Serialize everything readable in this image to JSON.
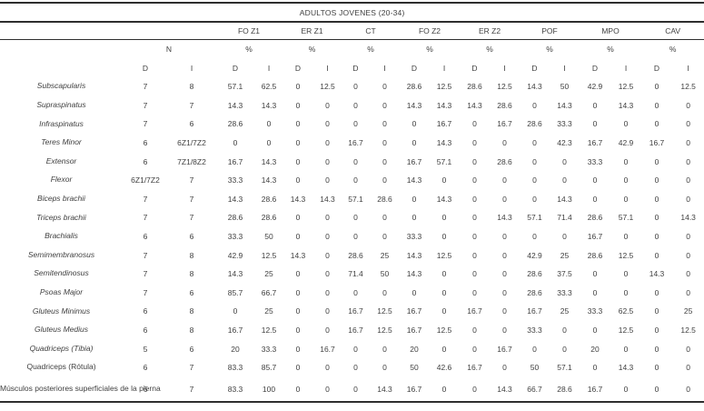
{
  "table": {
    "title": "ADULTOS JOVENES (20-34)",
    "n_label": "N",
    "percent_label": "%",
    "d_label": "D",
    "i_label": "I",
    "groups": [
      {
        "label": "FO Z1"
      },
      {
        "label": "ER Z1"
      },
      {
        "label": "CT"
      },
      {
        "label": "FO Z2"
      },
      {
        "label": "ER Z2"
      },
      {
        "label": "POF"
      },
      {
        "label": "MPO"
      },
      {
        "label": "CAV"
      }
    ],
    "rows": [
      {
        "muscle": "Subscapularis",
        "italic": true,
        "values": [
          "7",
          "8",
          "57.1",
          "62.5",
          "0",
          "12.5",
          "0",
          "0",
          "28.6",
          "12.5",
          "28.6",
          "12.5",
          "14.3",
          "50",
          "42.9",
          "12.5",
          "0",
          "12.5"
        ]
      },
      {
        "muscle": "Supraspinatus",
        "italic": true,
        "values": [
          "7",
          "7",
          "14.3",
          "14.3",
          "0",
          "0",
          "0",
          "0",
          "14.3",
          "14.3",
          "14.3",
          "28.6",
          "0",
          "14.3",
          "0",
          "14.3",
          "0",
          "0"
        ]
      },
      {
        "muscle": "Infraspinatus",
        "italic": true,
        "values": [
          "7",
          "6",
          "28.6",
          "0",
          "0",
          "0",
          "0",
          "0",
          "0",
          "16.7",
          "0",
          "16.7",
          "28.6",
          "33.3",
          "0",
          "0",
          "0",
          "0"
        ]
      },
      {
        "muscle": "Teres Minor",
        "italic": true,
        "values": [
          "6",
          "6Z1/7Z2",
          "0",
          "0",
          "0",
          "0",
          "16.7",
          "0",
          "0",
          "14.3",
          "0",
          "0",
          "0",
          "42.3",
          "16.7",
          "42.9",
          "16.7",
          "0"
        ]
      },
      {
        "muscle": "Extensor",
        "italic": true,
        "values": [
          "6",
          "7Z1/8Z2",
          "16.7",
          "14.3",
          "0",
          "0",
          "0",
          "0",
          "16.7",
          "57.1",
          "0",
          "28.6",
          "0",
          "0",
          "33.3",
          "0",
          "0",
          "0"
        ]
      },
      {
        "muscle": "Flexor",
        "italic": true,
        "values": [
          "6Z1/7Z2",
          "7",
          "33.3",
          "14.3",
          "0",
          "0",
          "0",
          "0",
          "14.3",
          "0",
          "0",
          "0",
          "0",
          "0",
          "0",
          "0",
          "0",
          "0"
        ]
      },
      {
        "muscle": "Biceps brachii",
        "italic": true,
        "values": [
          "7",
          "7",
          "14.3",
          "28.6",
          "14.3",
          "14.3",
          "57.1",
          "28.6",
          "0",
          "14.3",
          "0",
          "0",
          "0",
          "14.3",
          "0",
          "0",
          "0",
          "0"
        ]
      },
      {
        "muscle": "Triceps brachii",
        "italic": true,
        "values": [
          "7",
          "7",
          "28.6",
          "28.6",
          "0",
          "0",
          "0",
          "0",
          "0",
          "0",
          "0",
          "14.3",
          "57.1",
          "71.4",
          "28.6",
          "57.1",
          "0",
          "14.3"
        ]
      },
      {
        "muscle": "Brachialis",
        "italic": true,
        "values": [
          "6",
          "6",
          "33.3",
          "50",
          "0",
          "0",
          "0",
          "0",
          "33.3",
          "0",
          "0",
          "0",
          "0",
          "0",
          "16.7",
          "0",
          "0",
          "0"
        ]
      },
      {
        "muscle": "Semimembranosus",
        "italic": true,
        "values": [
          "7",
          "8",
          "42.9",
          "12.5",
          "14.3",
          "0",
          "28.6",
          "25",
          "14.3",
          "12.5",
          "0",
          "0",
          "42.9",
          "25",
          "28.6",
          "12.5",
          "0",
          "0"
        ]
      },
      {
        "muscle": "Semitendinosus",
        "italic": true,
        "values": [
          "7",
          "8",
          "14.3",
          "25",
          "0",
          "0",
          "71.4",
          "50",
          "14.3",
          "0",
          "0",
          "0",
          "28.6",
          "37.5",
          "0",
          "0",
          "14.3",
          "0"
        ]
      },
      {
        "muscle": "Psoas Major",
        "italic": true,
        "values": [
          "7",
          "6",
          "85.7",
          "66.7",
          "0",
          "0",
          "0",
          "0",
          "0",
          "0",
          "0",
          "0",
          "28.6",
          "33.3",
          "0",
          "0",
          "0",
          "0"
        ]
      },
      {
        "muscle": "Gluteus Minimus",
        "italic": true,
        "values": [
          "6",
          "8",
          "0",
          "25",
          "0",
          "0",
          "16.7",
          "12.5",
          "16.7",
          "0",
          "16.7",
          "0",
          "16.7",
          "25",
          "33.3",
          "62.5",
          "0",
          "25"
        ]
      },
      {
        "muscle": "Gluteus Medius",
        "italic": true,
        "values": [
          "6",
          "8",
          "16.7",
          "12.5",
          "0",
          "0",
          "16.7",
          "12.5",
          "16.7",
          "12.5",
          "0",
          "0",
          "33.3",
          "0",
          "0",
          "12.5",
          "0",
          "12.5"
        ]
      },
      {
        "muscle": "Quadriceps (Tibia)",
        "italic": true,
        "values": [
          "5",
          "6",
          "20",
          "33.3",
          "0",
          "16.7",
          "0",
          "0",
          "20",
          "0",
          "0",
          "16.7",
          "0",
          "0",
          "20",
          "0",
          "0",
          "0"
        ]
      },
      {
        "muscle": "Quadriceps (Rótula)",
        "italic": false,
        "values": [
          "6",
          "7",
          "83.3",
          "85.7",
          "0",
          "0",
          "0",
          "0",
          "50",
          "42.6",
          "16.7",
          "0",
          "50",
          "57.1",
          "0",
          "14.3",
          "0",
          "0"
        ]
      },
      {
        "muscle": "Músculos posteriores superficiales de la pierna",
        "italic": false,
        "values": [
          "6",
          "7",
          "83.3",
          "100",
          "0",
          "0",
          "0",
          "14.3",
          "16.7",
          "0",
          "0",
          "14.3",
          "66.7",
          "28.6",
          "16.7",
          "0",
          "0",
          "0"
        ]
      }
    ]
  }
}
